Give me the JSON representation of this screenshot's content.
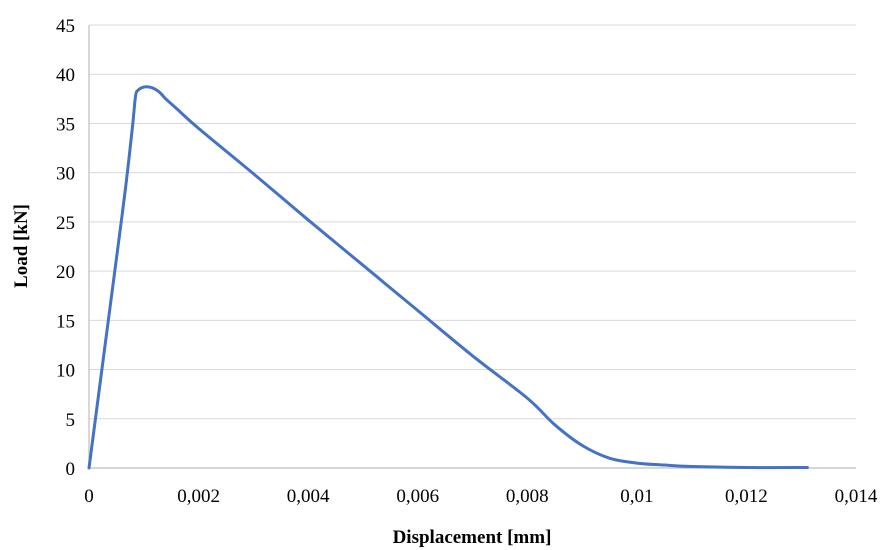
{
  "chart_data": {
    "type": "line",
    "title": "",
    "xlabel": "Displacement [mm]",
    "ylabel": "Load [kN]",
    "xlim": [
      0,
      0.014
    ],
    "ylim": [
      0,
      45
    ],
    "x_ticks": [
      0,
      0.002,
      0.004,
      0.006,
      0.008,
      0.01,
      0.012,
      0.014
    ],
    "x_tick_labels": [
      "0",
      "0,002",
      "0,004",
      "0,006",
      "0,008",
      "0,01",
      "0,012",
      "0,014"
    ],
    "y_ticks": [
      0,
      5,
      10,
      15,
      20,
      25,
      30,
      35,
      40,
      45
    ],
    "y_tick_labels": [
      "0",
      "5",
      "10",
      "15",
      "20",
      "25",
      "30",
      "35",
      "40",
      "45"
    ],
    "grid": "horizontal",
    "legend": "none",
    "series": [
      {
        "color": "#4472c4",
        "x": [
          0,
          0.0002,
          0.0004,
          0.0006,
          0.0007,
          0.0008,
          0.00085,
          0.0009,
          0.001,
          0.0011,
          0.0012,
          0.0013,
          0.0014,
          0.0016,
          0.002,
          0.003,
          0.004,
          0.005,
          0.006,
          0.007,
          0.008,
          0.0085,
          0.009,
          0.0095,
          0.01,
          0.0105,
          0.011,
          0.012,
          0.013,
          0.0131
        ],
        "y": [
          0,
          8.5,
          17,
          25.5,
          30,
          35,
          37.8,
          38.4,
          38.7,
          38.7,
          38.5,
          38.1,
          37.5,
          36.5,
          34.5,
          29.9,
          25.2,
          20.6,
          16,
          11.4,
          7.1,
          4.4,
          2.3,
          1,
          0.5,
          0.3,
          0.15,
          0.05,
          0.05,
          0.05
        ]
      }
    ]
  }
}
